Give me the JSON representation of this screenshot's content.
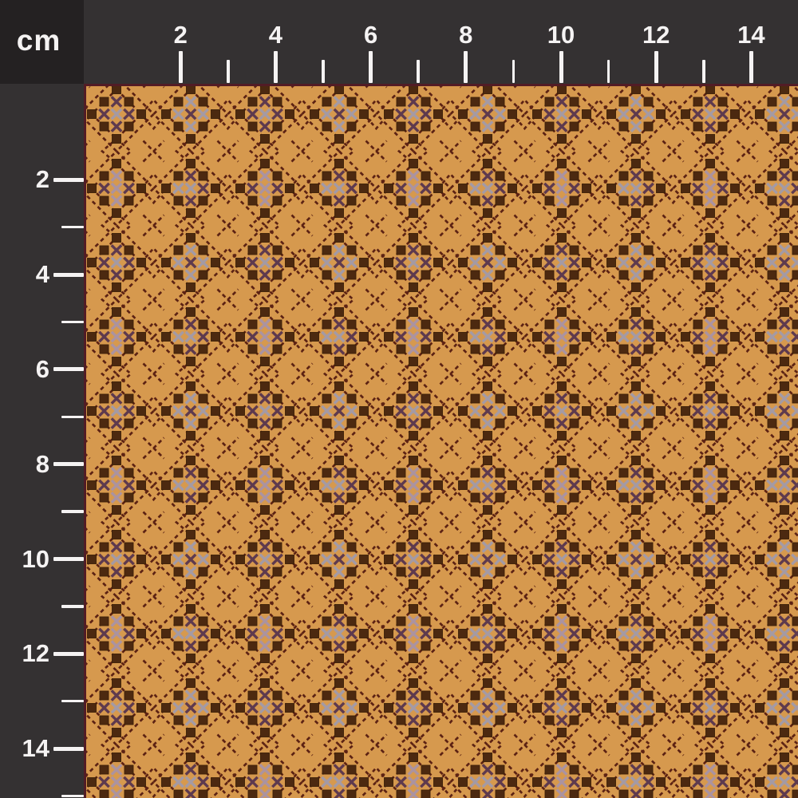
{
  "ruler": {
    "unit_label": "cm",
    "top": {
      "major_cm": [
        2,
        4,
        6,
        8,
        10,
        12,
        14
      ],
      "major_labels": [
        "2",
        "4",
        "6",
        "8",
        "10",
        "12",
        "14"
      ],
      "minor_cm": [
        3,
        5,
        7,
        9,
        11,
        13
      ]
    },
    "left": {
      "major_cm": [
        2,
        4,
        6,
        8,
        10,
        12,
        14
      ],
      "major_labels": [
        "2",
        "4",
        "6",
        "8",
        "10",
        "12",
        "14"
      ],
      "minor_cm": [
        3,
        5,
        7,
        9,
        11,
        13,
        15
      ]
    }
  },
  "fabric": {
    "description": "orange cross-stitch calico with brown squares, plum and mauve X stitches and dashed diamond lattice",
    "colors": {
      "background_orange": "#d6994e",
      "square_brown": "#4c2910",
      "square_edge": "#3c1f07",
      "dash_maroon": "#5c2213",
      "x_dark_plum": "#5e3a4e",
      "x_light_mauve": "#a49aa4",
      "x_light_pink": "#ab93a0",
      "fabric_edge_line": "#521c25"
    }
  },
  "colors": {
    "ruler_background": "#343132",
    "corner_background": "#242122",
    "tick_color": "#f5f3f3"
  }
}
